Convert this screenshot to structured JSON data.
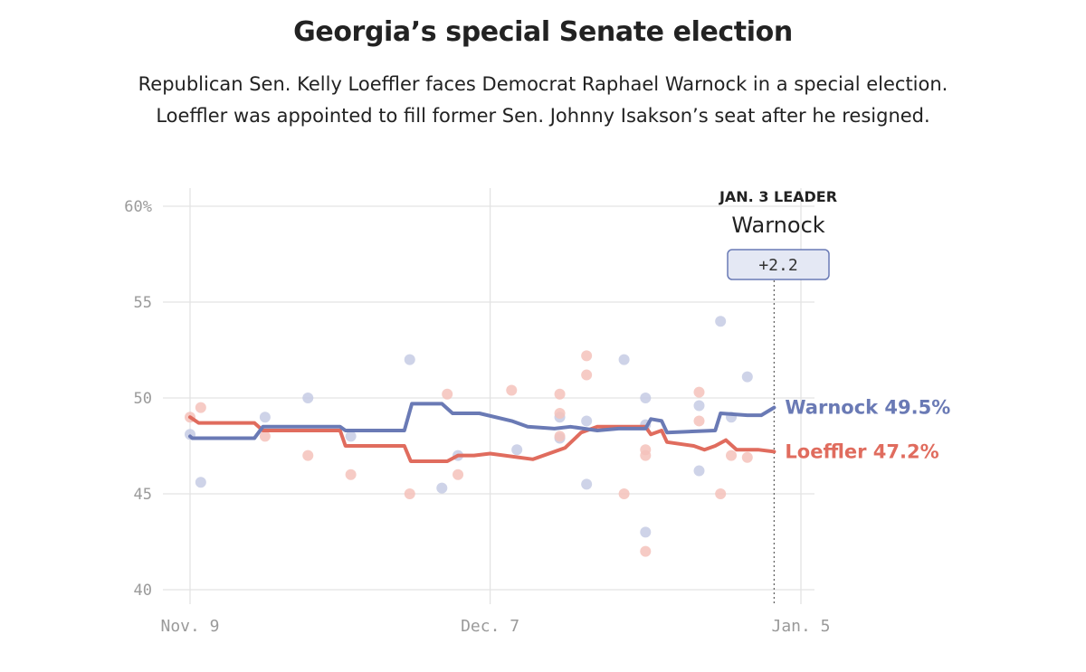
{
  "title": "Georgia’s special Senate election",
  "subtitle": "Republican Sen. Kelly Loeffler faces Democrat Raphael Warnock in a special election. Loeffler was appointed to fill former Sen. Johnny Isakson’s seat after he resigned.",
  "leader": {
    "heading": "JAN. 3 LEADER",
    "name": "Warnock",
    "margin": "+2.2"
  },
  "colors": {
    "warnock": "#6a7ab5",
    "loeffler": "#e06c5e",
    "warnock_dot": "#c5cbe4",
    "loeffler_dot": "#f4c2bb",
    "grid": "#e3e3e3",
    "badge_fill": "#e4e8f4",
    "badge_stroke": "#6a7ab5"
  },
  "chart_data": {
    "type": "line",
    "title": "",
    "xlabel": "",
    "ylabel": "",
    "x_ticks": [
      {
        "day": 0,
        "label": "Nov. 9"
      },
      {
        "day": 28,
        "label": "Dec. 7"
      },
      {
        "day": 57,
        "label": "Jan. 5"
      }
    ],
    "y_ticks": [
      {
        "value": 60,
        "label": "60%"
      },
      {
        "value": 55,
        "label": "55"
      },
      {
        "value": 50,
        "label": "50"
      },
      {
        "value": 45,
        "label": "45"
      },
      {
        "value": 40,
        "label": "40"
      }
    ],
    "x_range_days": [
      0,
      57
    ],
    "ylim": [
      40,
      60
    ],
    "leader_marker_day": 54.5,
    "series": [
      {
        "name": "Warnock",
        "end_label": "Warnock 49.5%",
        "line": [
          [
            0,
            48.0
          ],
          [
            0.2,
            47.9
          ],
          [
            6,
            47.9
          ],
          [
            6.8,
            48.5
          ],
          [
            14,
            48.5
          ],
          [
            14.5,
            48.3
          ],
          [
            20,
            48.3
          ],
          [
            20.7,
            49.7
          ],
          [
            23.5,
            49.7
          ],
          [
            24.5,
            49.2
          ],
          [
            27,
            49.2
          ],
          [
            30,
            48.8
          ],
          [
            31.5,
            48.5
          ],
          [
            34,
            48.4
          ],
          [
            35.5,
            48.5
          ],
          [
            38,
            48.3
          ],
          [
            40,
            48.4
          ],
          [
            42.5,
            48.4
          ],
          [
            43,
            48.9
          ],
          [
            44,
            48.8
          ],
          [
            44.5,
            48.2
          ],
          [
            49,
            48.3
          ],
          [
            49.5,
            49.2
          ],
          [
            52,
            49.1
          ],
          [
            53.3,
            49.1
          ],
          [
            54.5,
            49.5
          ]
        ],
        "points": [
          [
            0,
            48.1
          ],
          [
            1,
            45.6
          ],
          [
            7,
            49.0
          ],
          [
            11,
            50.0
          ],
          [
            15,
            48.0
          ],
          [
            20.5,
            52.0
          ],
          [
            23.5,
            45.3
          ],
          [
            25,
            47.0
          ],
          [
            30.5,
            47.3
          ],
          [
            34.5,
            49.0
          ],
          [
            34.5,
            47.9
          ],
          [
            37,
            48.8
          ],
          [
            37,
            45.5
          ],
          [
            40.5,
            52.0
          ],
          [
            42.5,
            50.0
          ],
          [
            42.5,
            48.6
          ],
          [
            42.5,
            43.0
          ],
          [
            47.5,
            46.2
          ],
          [
            47.5,
            49.6
          ],
          [
            49.5,
            54.0
          ],
          [
            52,
            51.1
          ],
          [
            50.5,
            49.0
          ]
        ]
      },
      {
        "name": "Loeffler",
        "end_label": "Loeffler 47.2%",
        "line": [
          [
            0,
            49.0
          ],
          [
            0.8,
            48.7
          ],
          [
            6,
            48.7
          ],
          [
            6.8,
            48.3
          ],
          [
            14,
            48.3
          ],
          [
            14.5,
            47.5
          ],
          [
            20,
            47.5
          ],
          [
            20.6,
            46.7
          ],
          [
            24,
            46.7
          ],
          [
            25,
            47.0
          ],
          [
            26.5,
            47.0
          ],
          [
            28,
            47.1
          ],
          [
            32,
            46.8
          ],
          [
            35,
            47.4
          ],
          [
            36.5,
            48.2
          ],
          [
            38,
            48.5
          ],
          [
            42.5,
            48.5
          ],
          [
            43,
            48.1
          ],
          [
            44,
            48.3
          ],
          [
            44.5,
            47.7
          ],
          [
            47,
            47.5
          ],
          [
            48,
            47.3
          ],
          [
            49,
            47.5
          ],
          [
            50,
            47.8
          ],
          [
            51,
            47.3
          ],
          [
            53,
            47.3
          ],
          [
            54.5,
            47.2
          ]
        ],
        "points": [
          [
            0,
            49.0
          ],
          [
            1,
            49.5
          ],
          [
            7,
            48.0
          ],
          [
            11,
            47.0
          ],
          [
            15,
            46.0
          ],
          [
            20.5,
            45.0
          ],
          [
            24,
            50.2
          ],
          [
            25,
            46.0
          ],
          [
            30,
            50.4
          ],
          [
            34.5,
            50.2
          ],
          [
            34.5,
            49.2
          ],
          [
            34.5,
            48.0
          ],
          [
            37,
            52.2
          ],
          [
            37,
            51.2
          ],
          [
            40.5,
            45.0
          ],
          [
            42.5,
            47.0
          ],
          [
            42.5,
            47.3
          ],
          [
            42.5,
            42.0
          ],
          [
            47.5,
            50.3
          ],
          [
            47.5,
            48.8
          ],
          [
            49.5,
            45.0
          ],
          [
            50.5,
            47.0
          ],
          [
            52,
            46.9
          ]
        ]
      }
    ]
  }
}
